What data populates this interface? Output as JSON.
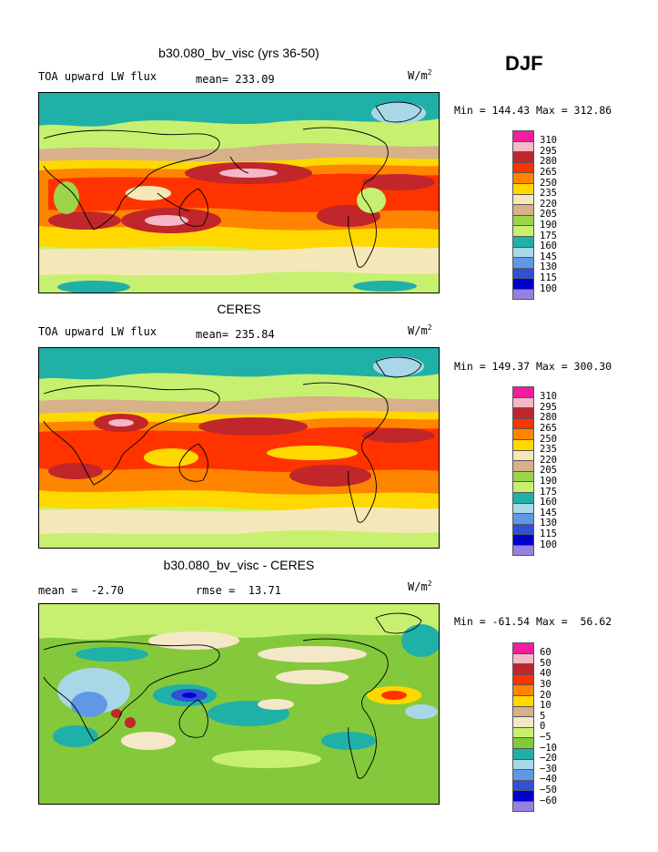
{
  "season": "DJF",
  "units": "W/m",
  "units_sup": "2",
  "colors_abs": [
    "#f21e9e",
    "#f5b8c8",
    "#c0262a",
    "#ff3300",
    "#ff8400",
    "#ffd800",
    "#f5e8b8",
    "#d8b08a",
    "#9cd44a",
    "#c8f070",
    "#1fb0a8",
    "#a8d8e8",
    "#6098e8",
    "#3050d8",
    "#0000cc",
    "#9880e0"
  ],
  "colors_diff": [
    "#f21e9e",
    "#f5b8c8",
    "#c0262a",
    "#ff3300",
    "#ff8400",
    "#ffd800",
    "#d8b08a",
    "#f5e8c8",
    "#c8f070",
    "#84c83c",
    "#1fb0a8",
    "#a8d8e8",
    "#6098e8",
    "#3050d8",
    "#0000cc",
    "#9880e0"
  ],
  "panels": [
    {
      "title": "b30.080_bv_visc (yrs 36-50)",
      "left_text": "TOA upward LW flux",
      "stat_text": "mean= 233.09",
      "minmax": "Min = 144.43 Max = 312.86",
      "levels": [
        "310",
        "295",
        "280",
        "265",
        "250",
        "235",
        "220",
        "205",
        "190",
        "175",
        "160",
        "145",
        "130",
        "115",
        "100"
      ],
      "field_mean": 233.09,
      "field_min": 144.43,
      "field_max": 312.86
    },
    {
      "title": "CERES",
      "left_text": "TOA upward LW flux",
      "stat_text": "mean= 235.84",
      "minmax": "Min = 149.37 Max = 300.30",
      "levels": [
        "310",
        "295",
        "280",
        "265",
        "250",
        "235",
        "220",
        "205",
        "190",
        "175",
        "160",
        "145",
        "130",
        "115",
        "100"
      ],
      "field_mean": 235.84,
      "field_min": 149.37,
      "field_max": 300.3
    },
    {
      "title": "b30.080_bv_visc - CERES",
      "left_text": "mean =  -2.70",
      "stat_text": "rmse =  13.71",
      "minmax": "Min = -61.54 Max =  56.62",
      "levels": [
        "60",
        "50",
        "40",
        "30",
        "20",
        "10",
        "5",
        "0",
        "−5",
        "−10",
        "−20",
        "−30",
        "−40",
        "−50",
        "−60"
      ],
      "field_mean": -2.7,
      "field_min": -61.54,
      "field_max": 56.62
    }
  ]
}
